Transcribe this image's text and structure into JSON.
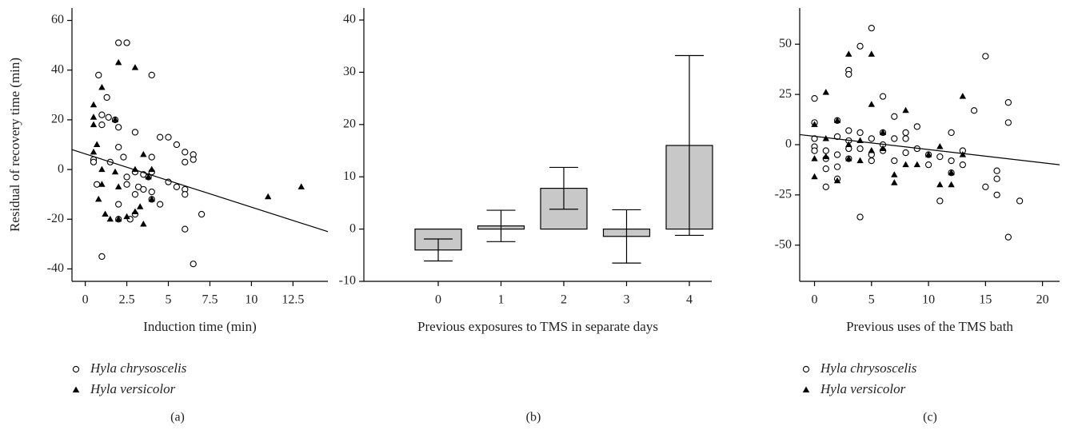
{
  "chart_data": [
    {
      "type": "scatter",
      "panel_label": "(a)",
      "y_label": "Residual of recovery time (min)",
      "x_label": "Induction time (min)",
      "xlim": [
        -0.8,
        14.6
      ],
      "ylim": [
        -45,
        65
      ],
      "xticks": [
        0,
        2.5,
        5,
        7.5,
        10,
        12.5
      ],
      "yticks": [
        -40,
        -20,
        0,
        20,
        40,
        60
      ],
      "legend": "bottom-left",
      "series": [
        {
          "name": "Hyla chrysoscelis",
          "color": "#000000",
          "marker": "circle-open",
          "x": [
            0.5,
            0.5,
            0.7,
            0.8,
            1,
            1,
            1,
            1.3,
            1.4,
            1.5,
            1.8,
            2,
            2,
            2,
            2,
            2,
            2.3,
            2.5,
            2.5,
            2.5,
            2.7,
            3,
            3,
            3,
            3,
            3.2,
            3.5,
            3.5,
            3.8,
            4,
            4,
            4,
            4,
            4,
            4.5,
            4.5,
            5,
            5,
            5.5,
            5.5,
            6,
            6,
            6,
            6,
            6,
            6.5,
            6.5,
            6.5,
            7
          ],
          "y": [
            4,
            3,
            -6,
            38,
            18,
            22,
            -35,
            29,
            21,
            3,
            20,
            51,
            17,
            9,
            -14,
            -20,
            5,
            51,
            -6,
            -3,
            -20,
            15,
            -1,
            -10,
            -18,
            -7,
            -8,
            -2,
            -3,
            38,
            -1,
            -9,
            -12,
            5,
            13,
            -14,
            13,
            -5,
            10,
            -7,
            7,
            3,
            -8,
            -24,
            -10,
            6,
            4,
            -38,
            -18
          ]
        },
        {
          "name": "Hyla versicolor",
          "color": "#000000",
          "marker": "triangle",
          "x": [
            0.5,
            0.5,
            0.5,
            0.5,
            0.7,
            0.8,
            1,
            1,
            1,
            1.2,
            1.5,
            1.8,
            1.8,
            2,
            2,
            2,
            2.5,
            3,
            3,
            3,
            3.3,
            3.5,
            3.5,
            3.8,
            4,
            4,
            11,
            13
          ],
          "y": [
            26,
            21,
            18,
            7,
            10,
            -12,
            33,
            0,
            -6,
            -18,
            -20,
            20,
            -1,
            -7,
            43,
            -20,
            -19,
            41,
            0,
            -17,
            -15,
            6,
            -22,
            -3,
            0,
            -12,
            -11,
            -7
          ]
        }
      ],
      "fit_line": {
        "x": [
          -0.8,
          14.6
        ],
        "y": [
          8,
          -25
        ]
      }
    },
    {
      "type": "bar",
      "panel_label": "(b)",
      "x_label": "Previous exposures to TMS in separate days",
      "categories": [
        "0",
        "1",
        "2",
        "3",
        "4"
      ],
      "values": [
        -4,
        0.6,
        7.8,
        -1.4,
        16
      ],
      "errors": [
        2.1,
        3,
        4,
        5.1,
        17.2
      ],
      "color": "#c8c8c8",
      "ylim": [
        -10,
        42.3
      ],
      "yticks": [
        -10,
        0,
        10,
        20,
        30,
        40
      ]
    },
    {
      "type": "scatter",
      "panel_label": "(c)",
      "x_label": "Previous uses of the TMS bath",
      "xlim": [
        -1.3,
        21.5
      ],
      "ylim": [
        -68,
        68
      ],
      "xticks": [
        0,
        5,
        10,
        15,
        20
      ],
      "yticks": [
        -50,
        -25,
        0,
        25,
        50
      ],
      "legend": "bottom-left",
      "series": [
        {
          "name": "Hyla chrysoscelis",
          "color": "#000000",
          "marker": "circle-open",
          "x": [
            0,
            0,
            0,
            0,
            0,
            1,
            1,
            1,
            1,
            2,
            2,
            2,
            2,
            2,
            3,
            3,
            3,
            3,
            3,
            3,
            4,
            4,
            4,
            4,
            5,
            5,
            5,
            5,
            6,
            6,
            6,
            6,
            7,
            7,
            7,
            8,
            8,
            8,
            9,
            9,
            10,
            10,
            11,
            11,
            12,
            12,
            12,
            13,
            13,
            14,
            15,
            15,
            16,
            16,
            16,
            17,
            17,
            17,
            18
          ],
          "y": [
            23,
            11,
            3,
            -1,
            -3,
            -3,
            -7,
            -12,
            -21,
            12,
            4,
            -5,
            -11,
            -17,
            37,
            35,
            7,
            2,
            -2,
            -7,
            49,
            6,
            -2,
            -36,
            58,
            3,
            -5,
            -8,
            24,
            6,
            0,
            -3,
            14,
            3,
            -8,
            6,
            3,
            -4,
            9,
            -2,
            -5,
            -10,
            -6,
            -28,
            6,
            -8,
            -14,
            -3,
            -10,
            17,
            44,
            -21,
            -13,
            -17,
            -25,
            21,
            11,
            -46,
            -28
          ]
        },
        {
          "name": "Hyla versicolor",
          "color": "#000000",
          "marker": "triangle",
          "x": [
            0,
            0,
            0,
            1,
            1,
            1,
            2,
            2,
            3,
            3,
            3,
            4,
            4,
            5,
            5,
            5,
            6,
            6,
            7,
            7,
            8,
            8,
            9,
            10,
            11,
            11,
            12,
            12,
            13,
            13
          ],
          "y": [
            10,
            -7,
            -16,
            26,
            3,
            -6,
            12,
            -18,
            45,
            0,
            -7,
            2,
            -8,
            45,
            20,
            -3,
            6,
            -2,
            -15,
            -19,
            17,
            -10,
            -10,
            -5,
            -1,
            -20,
            -14,
            -20,
            24,
            -5
          ]
        }
      ],
      "fit_line": {
        "x": [
          -1.3,
          21.5
        ],
        "y": [
          5,
          -10
        ]
      }
    }
  ]
}
